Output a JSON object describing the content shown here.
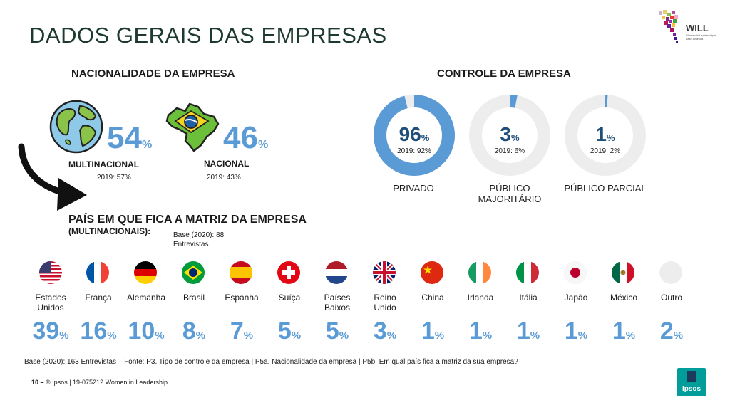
{
  "title": "DADOS GERAIS DAS EMPRESAS",
  "logo_will": "WILL",
  "logo_will_sub": "Women in Leadership in Latin America",
  "nationality": {
    "heading": "NACIONALIDADE DA EMPRESA",
    "multinational": {
      "value": "54",
      "label": "MULTINACIONAL",
      "prev": "2019: 57%"
    },
    "national": {
      "value": "46",
      "label": "NACIONAL",
      "prev": "2019: 43%"
    }
  },
  "control": {
    "heading": "CONTROLE DA EMPRESA",
    "items": [
      {
        "value": "96",
        "prev": "2019: 92%",
        "label": "PRIVADO"
      },
      {
        "value": "3",
        "prev": "2019: 6%",
        "label": "PÚBLICO MAJORITÁRIO"
      },
      {
        "value": "1",
        "prev": "2019: 2%",
        "label": "PÚBLICO PARCIAL"
      }
    ]
  },
  "hq": {
    "heading": "PAÍS EM QUE FICA A MATRIZ DA EMPRESA",
    "subheading": "(MULTINACIONAIS):",
    "base_line1": "Base (2020): 88",
    "base_line2": "Entrevistas"
  },
  "pct_symbol": "%",
  "chart_data": {
    "type": "bar",
    "title": "PAÍS EM QUE FICA A MATRIZ DA EMPRESA (MULTINACIONAIS)",
    "categories": [
      "Estados Unidos",
      "França",
      "Alemanha",
      "Brasil",
      "Espanha",
      "Suíça",
      "Países Baixos",
      "Reino Unido",
      "China",
      "Irlanda",
      "Itália",
      "Japão",
      "México",
      "Outro"
    ],
    "values": [
      39,
      16,
      10,
      8,
      7,
      5,
      5,
      3,
      1,
      1,
      1,
      1,
      1,
      2
    ],
    "unit": "%"
  },
  "footer": {
    "base": "Base (2020): 163 Entrevistas – Fonte: P3. Tipo de controle da empresa | P5a. Nacionalidade da empresa | P5b. Em qual país fica a matriz da sua empresa?",
    "page": "10 –",
    "copyright": "© Ipsos | 19-075212 Women in Leadership",
    "ipsos": "Ipsos"
  },
  "colors": {
    "accent": "#5b9bd5",
    "track": "#ededed",
    "title": "#1e3a2e",
    "ipsos": "#009d9a"
  }
}
